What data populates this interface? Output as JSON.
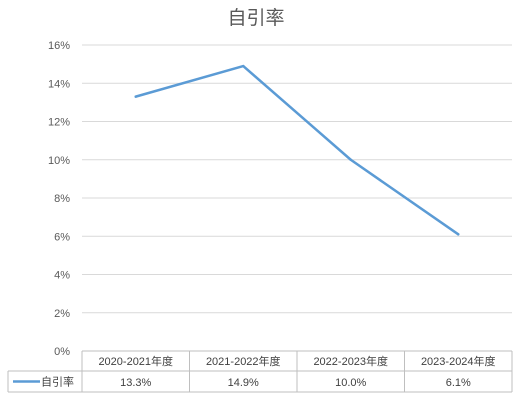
{
  "chart_data": {
    "type": "line",
    "title": "自引率",
    "categories": [
      "2020-2021年度",
      "2021-2022年度",
      "2022-2023年度",
      "2023-2024年度"
    ],
    "series": [
      {
        "name": "自引率",
        "values": [
          13.3,
          14.9,
          10.0,
          6.1
        ],
        "labels": [
          "13.3%",
          "14.9%",
          "10.0%",
          "6.1%"
        ]
      }
    ],
    "y_ticks": [
      "0%",
      "2%",
      "4%",
      "6%",
      "8%",
      "10%",
      "12%",
      "14%",
      "16%"
    ],
    "ylim": [
      0,
      16
    ],
    "grid": true,
    "legend": "data-table",
    "color": "#5b9bd5"
  }
}
